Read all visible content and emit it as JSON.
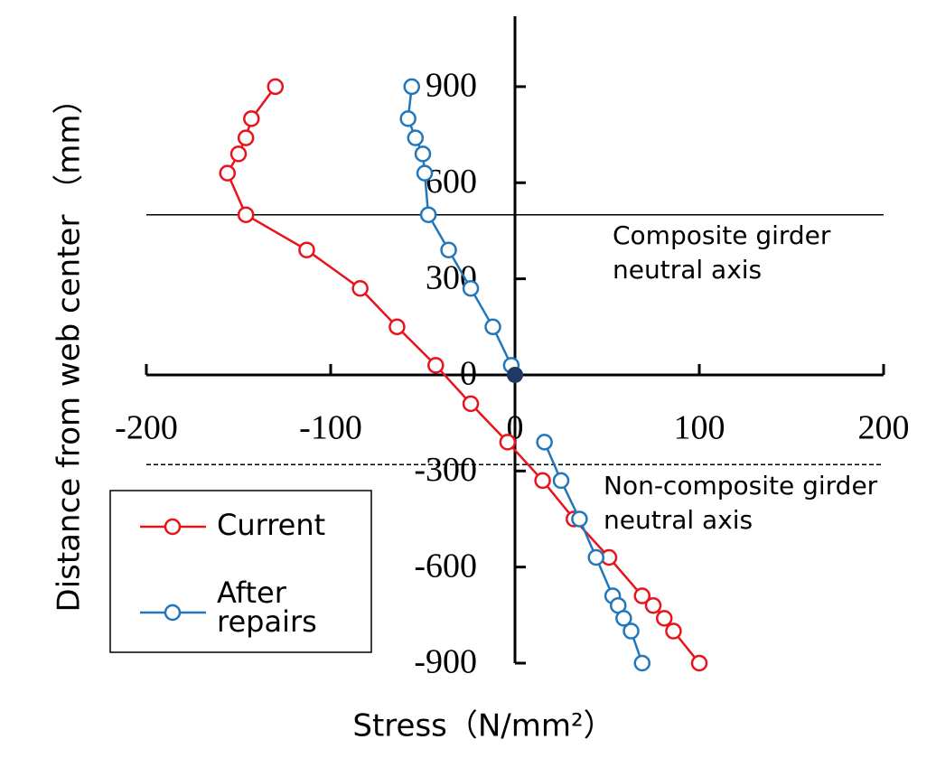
{
  "chart_data": {
    "type": "line",
    "x_label": "Stress（N/mm²）",
    "y_label": "Distance from web center （mm）",
    "xlim": [
      -200,
      200
    ],
    "xticks": [
      -200,
      -100,
      0,
      100,
      200
    ],
    "ylim": [
      -900,
      1100
    ],
    "yticks": [
      -900,
      -600,
      -300,
      0,
      300,
      600,
      900
    ],
    "series": [
      {
        "name": "Current",
        "color": "#e8131b",
        "x": [
          -130,
          -143,
          -146,
          -150,
          -156,
          -146,
          -113,
          -84,
          -64,
          -43,
          -24,
          -4,
          15,
          32,
          51,
          69,
          75,
          81,
          86,
          100
        ],
        "values": [
          900,
          800,
          740,
          690,
          630,
          500,
          390,
          270,
          150,
          30,
          -90,
          -210,
          -330,
          -450,
          -570,
          -690,
          -720,
          -760,
          -800,
          -900
        ]
      },
      {
        "name": "After repairs",
        "color": "#2277bb",
        "x": [
          -56,
          -58,
          -54,
          -50,
          -49,
          -47,
          -36,
          -24,
          -12,
          -2,
          0,
          16,
          25,
          35,
          44,
          53,
          56,
          59,
          63,
          69
        ],
        "values": [
          900,
          800,
          740,
          690,
          630,
          500,
          390,
          270,
          150,
          30,
          null,
          -210,
          -330,
          -450,
          -570,
          -690,
          -720,
          -760,
          -800,
          -900
        ]
      }
    ],
    "points": [
      {
        "x": 0,
        "y": 0,
        "color": "#1f3864"
      }
    ],
    "reference_lines": [
      {
        "y": 500,
        "style": "solid",
        "label": "Composite girder neutral axis"
      },
      {
        "y": -280,
        "style": "dashed",
        "label": "Non-composite girder neutral axis"
      }
    ]
  }
}
